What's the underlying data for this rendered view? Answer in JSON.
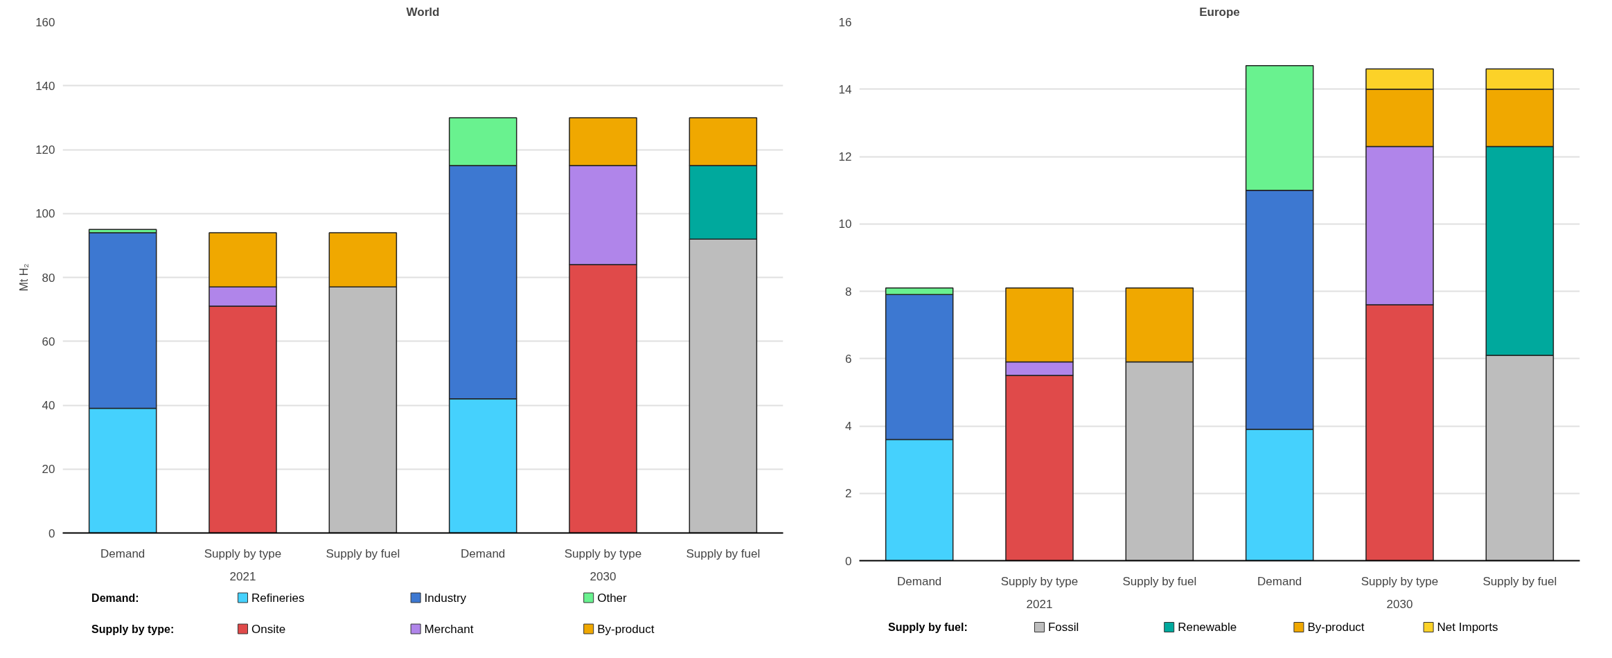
{
  "chart_data": [
    {
      "type": "bar",
      "title": "World",
      "ylabel": "Mt H₂",
      "stacked": true,
      "grid": "y",
      "legend": "bottom",
      "categories": [
        "Demand",
        "Supply by type",
        "Supply by fuel",
        "Demand",
        "Supply by type",
        "Supply by fuel"
      ],
      "annotations": [
        "2021",
        "2030",
        "Demand:",
        "Supply by type:"
      ],
      "ylim": [
        0,
        160
      ],
      "yticks": [
        0,
        20,
        40,
        60,
        80,
        100,
        120,
        140,
        160
      ],
      "series": [
        {
          "name": "Refineries",
          "color": "#45d1fd",
          "values": [
            39,
            null,
            null,
            42,
            null,
            null
          ]
        },
        {
          "name": "Industry",
          "color": "#3d78d1",
          "values": [
            55,
            null,
            null,
            73,
            null,
            null
          ]
        },
        {
          "name": "Other",
          "color": "#69f28f",
          "values": [
            1,
            null,
            null,
            15,
            null,
            null
          ]
        },
        {
          "name": "Onsite",
          "color": "#e04a4a",
          "values": [
            null,
            71,
            null,
            null,
            84,
            null
          ]
        },
        {
          "name": "Merchant",
          "color": "#b085ea",
          "values": [
            null,
            6,
            null,
            null,
            31,
            null
          ]
        },
        {
          "color": "#bdbdbd",
          "values": [
            null,
            null,
            77,
            null,
            null,
            92
          ]
        },
        {
          "color": "#00a99d",
          "values": [
            null,
            null,
            null,
            null,
            null,
            23
          ]
        },
        {
          "name": "By-product",
          "color": "#f0a800",
          "values": [
            null,
            17,
            17,
            null,
            15,
            15
          ]
        }
      ]
    },
    {
      "type": "bar",
      "title": "Europe",
      "stacked": true,
      "grid": "y",
      "legend": "bottom",
      "categories": [
        "Demand",
        "Supply by type",
        "Supply by fuel",
        "Demand",
        "Supply by type",
        "Supply by fuel"
      ],
      "annotations": [
        "2021",
        "2030",
        "Supply by fuel:"
      ],
      "ylim": [
        0,
        16
      ],
      "yticks": [
        0,
        2,
        4,
        6,
        8,
        10,
        12,
        14,
        16
      ],
      "series": [
        {
          "color": "#45d1fd",
          "values": [
            3.6,
            null,
            null,
            3.9,
            null,
            null
          ]
        },
        {
          "color": "#3d78d1",
          "values": [
            4.3,
            null,
            null,
            7.1,
            null,
            null
          ]
        },
        {
          "color": "#69f28f",
          "values": [
            0.2,
            null,
            null,
            3.7,
            null,
            null
          ]
        },
        {
          "color": "#e04a4a",
          "values": [
            null,
            5.5,
            null,
            null,
            7.6,
            null
          ]
        },
        {
          "color": "#b085ea",
          "values": [
            null,
            0.4,
            null,
            null,
            4.7,
            null
          ]
        },
        {
          "name": "Fossil",
          "color": "#bdbdbd",
          "values": [
            null,
            null,
            5.9,
            null,
            null,
            6.1
          ]
        },
        {
          "name": "Renewable",
          "color": "#00a99d",
          "values": [
            null,
            null,
            null,
            null,
            null,
            6.2
          ]
        },
        {
          "name": "By-product",
          "color": "#f0a800",
          "values": [
            null,
            2.2,
            2.2,
            null,
            1.7,
            1.7
          ]
        },
        {
          "name": "Net Imports",
          "color": "#fcd228",
          "values": [
            null,
            null,
            null,
            null,
            0.6,
            0.6
          ]
        }
      ]
    }
  ]
}
